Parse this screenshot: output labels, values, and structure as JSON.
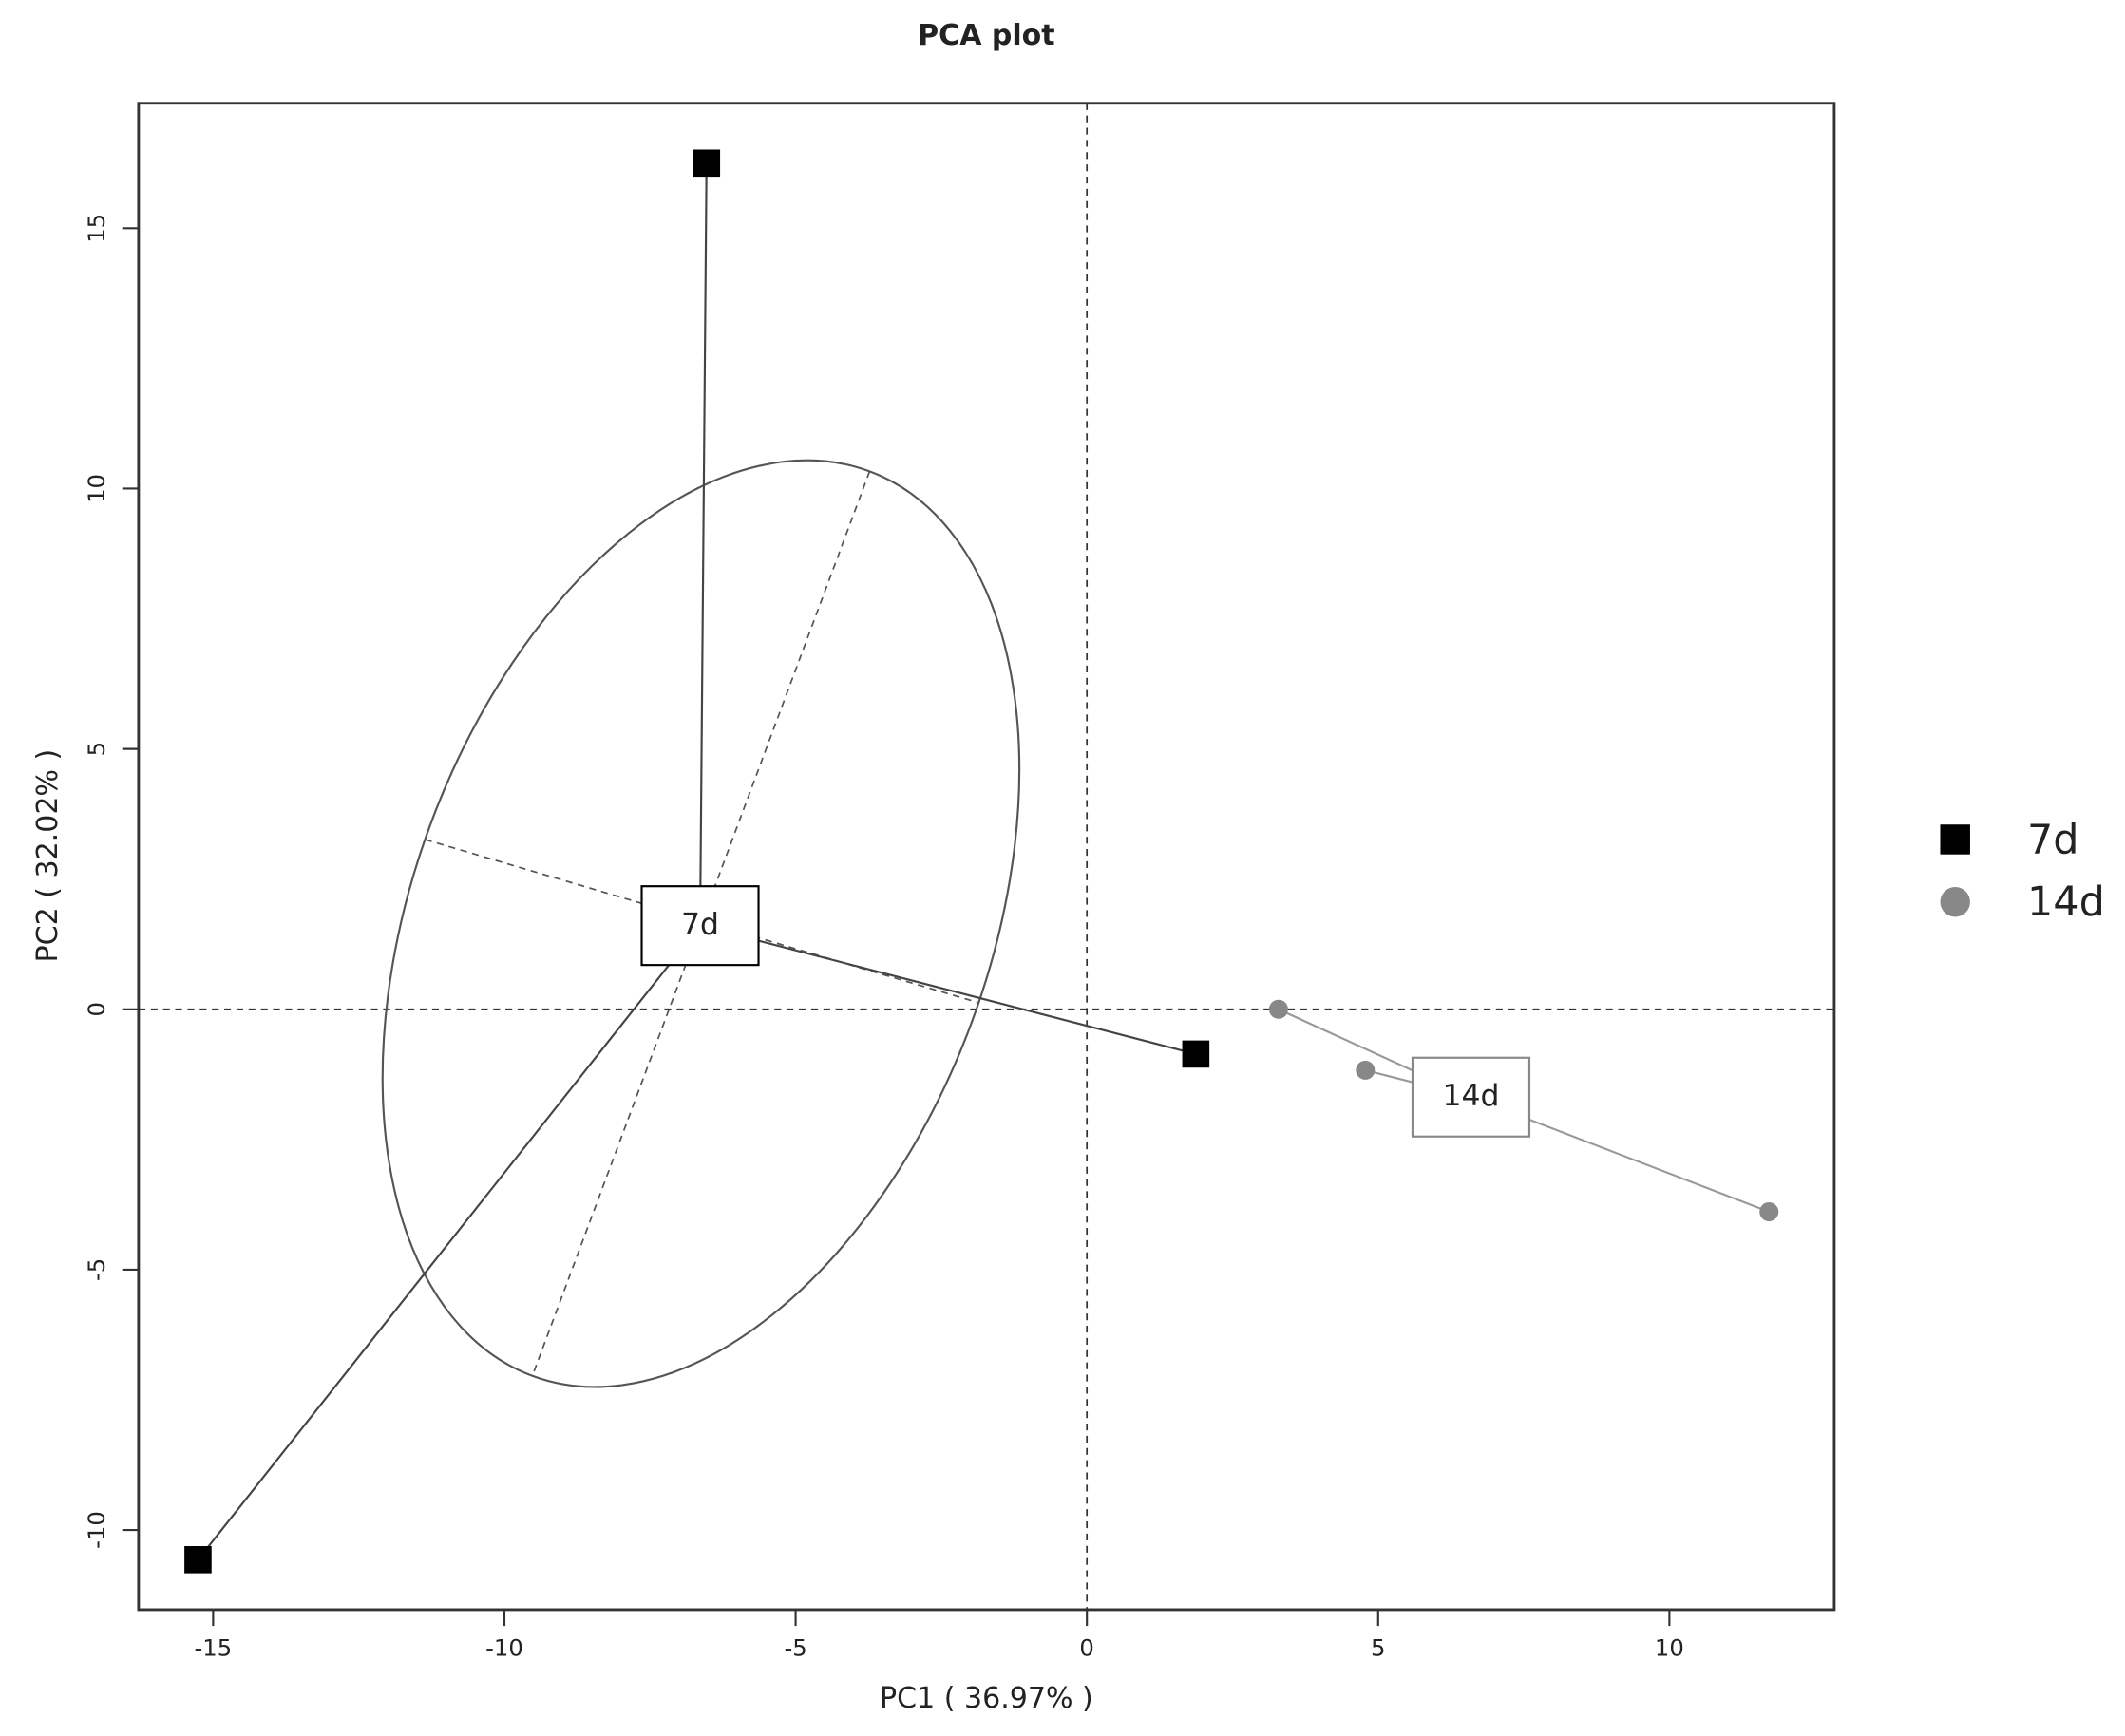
{
  "chart_data": {
    "type": "scatter",
    "title": "PCA plot",
    "x_label": "PC1 ( 36.97% )",
    "y_label": "PC2 ( 32.02% )",
    "xlim": [
      -16.28,
      12.83
    ],
    "ylim": [
      -11.53,
      17.4
    ],
    "xticks": [
      -15,
      -10,
      -5,
      0,
      5,
      10
    ],
    "yticks": [
      -10,
      -5,
      0,
      5,
      10,
      15
    ],
    "hline": 0,
    "vline": 0,
    "series": [
      {
        "name": "7d",
        "color": "#000000",
        "marker": "square",
        "x": [
          -6.53,
          1.87,
          -15.26
        ],
        "y": [
          16.25,
          -0.86,
          -10.57
        ],
        "ellipse": {
          "axis1": [
            [
              -3.73,
              10.33
            ],
            [
              -9.52,
              -7.04
            ]
          ],
          "axis2": [
            [
              -11.36,
              3.26
            ],
            [
              -1.87,
              0.13
            ]
          ]
        }
      },
      {
        "name": "14d",
        "color": "#888888",
        "marker": "circle",
        "x": [
          3.29,
          4.78,
          11.71
        ],
        "y": [
          0,
          -1.17,
          -3.89
        ]
      }
    ]
  }
}
